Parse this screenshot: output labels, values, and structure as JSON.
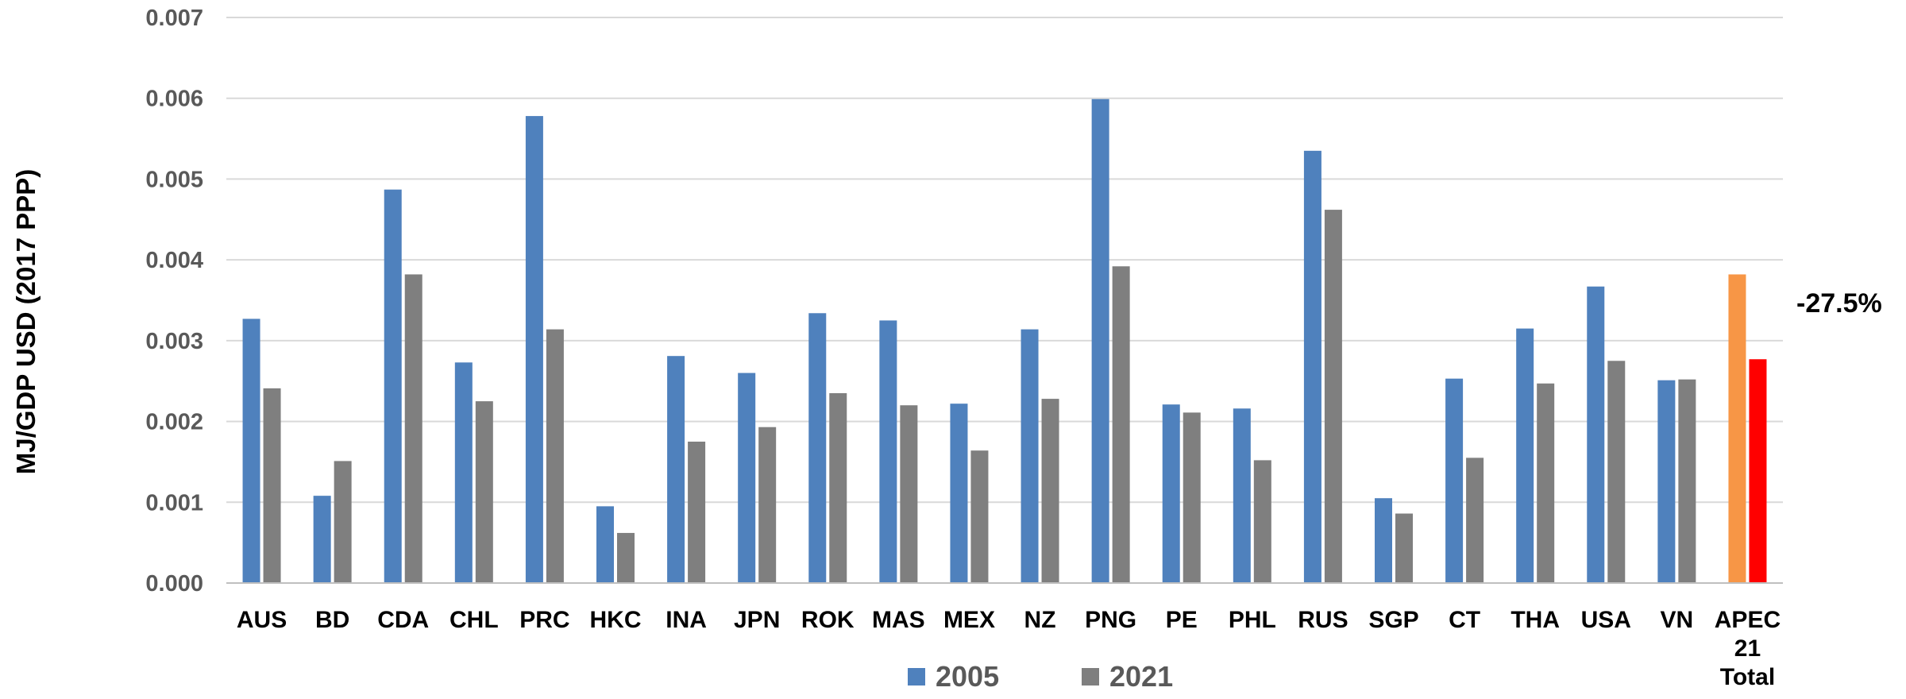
{
  "chart_data": {
    "type": "bar",
    "title": "",
    "xlabel": "",
    "ylabel": "MJ/GDP USD (2017 PPP)",
    "ylim": [
      0,
      0.007
    ],
    "yticks": [
      "0.000",
      "0.001",
      "0.002",
      "0.003",
      "0.004",
      "0.005",
      "0.006",
      "0.007"
    ],
    "grid": true,
    "legend_position": "bottom",
    "categories": [
      "AUS",
      "BD",
      "CDA",
      "CHL",
      "PRC",
      "HKC",
      "INA",
      "JPN",
      "ROK",
      "MAS",
      "MEX",
      "NZ",
      "PNG",
      "PE",
      "PHL",
      "RUS",
      "SGP",
      "CT",
      "THA",
      "USA",
      "VN",
      "APEC 21 Total"
    ],
    "series": [
      {
        "name": "2005",
        "color": "#4f81bd",
        "values": [
          0.00327,
          0.00108,
          0.00487,
          0.00273,
          0.00578,
          0.00095,
          0.00281,
          0.0026,
          0.00334,
          0.00325,
          0.00222,
          0.00314,
          0.00599,
          0.00221,
          0.00216,
          0.00535,
          0.00105,
          0.00253,
          0.00315,
          0.00367,
          0.00251,
          0.00382
        ]
      },
      {
        "name": "2021",
        "color": "#7f7f7f",
        "values": [
          0.00241,
          0.00151,
          0.00382,
          0.00225,
          0.00314,
          0.00062,
          0.00175,
          0.00193,
          0.00235,
          0.0022,
          0.00164,
          0.00228,
          0.00392,
          0.00211,
          0.00152,
          0.00462,
          0.00086,
          0.00155,
          0.00247,
          0.00275,
          0.00252,
          0.00277
        ]
      }
    ],
    "highlight": {
      "category": "APEC 21 Total",
      "colors": [
        "#f79646",
        "#ff0000"
      ]
    },
    "annotations": [
      {
        "text": "-27.5%",
        "category": "APEC 21 Total"
      }
    ]
  }
}
